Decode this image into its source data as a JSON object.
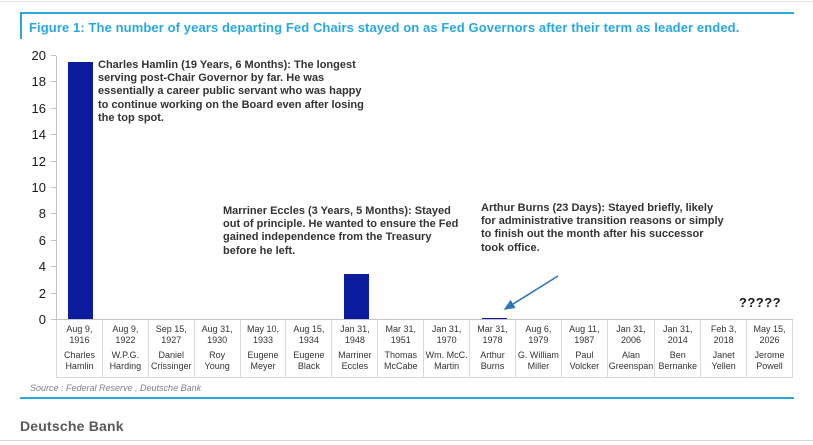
{
  "figure": {
    "source_note": "Source : Federal Reserve , Deutsche Bank",
    "footer_brand": "Deutsche Bank"
  },
  "colors": {
    "title_accent_blue": "#29a8e0",
    "bar_navy": "#0b1c9e",
    "arrow_blue": "#2e75b6"
  },
  "chart_data": {
    "type": "bar",
    "title": "Figure 1: The number of years departing Fed Chairs stayed on as Fed Governors after their term as leader ended.",
    "xlabel": "",
    "ylabel": "",
    "ylim": [
      0,
      20
    ],
    "ytick_interval": 2,
    "grid": "off",
    "bar_color": "#0b1c9e",
    "columns": [
      {
        "date": "Aug 9,\n1916",
        "name": "Charles\nHamlin",
        "value": 19.5
      },
      {
        "date": "Aug 9,\n1922",
        "name": "W.P.G.\nHarding",
        "value": 0
      },
      {
        "date": "Sep 15,\n1927",
        "name": "Daniel\nCrissinger",
        "value": 0
      },
      {
        "date": "Aug 31,\n1930",
        "name": "Roy Young",
        "value": 0
      },
      {
        "date": "May 10,\n1933",
        "name": "Eugene\nMeyer",
        "value": 0
      },
      {
        "date": "Aug 15,\n1934",
        "name": "Eugene\nBlack",
        "value": 0
      },
      {
        "date": "Jan 31,\n1948",
        "name": "Marriner\nEccles",
        "value": 3.42
      },
      {
        "date": "Mar 31,\n1951",
        "name": "Thomas\nMcCabe",
        "value": 0
      },
      {
        "date": "Jan 31,\n1970",
        "name": "Wm. McC.\nMartin",
        "value": 0
      },
      {
        "date": "Mar 31,\n1978",
        "name": "Arthur\nBurns",
        "value": 0.06
      },
      {
        "date": "Aug 6,\n1979",
        "name": "G. William\nMiller",
        "value": 0
      },
      {
        "date": "Aug 11,\n1987",
        "name": "Paul\nVolcker",
        "value": 0
      },
      {
        "date": "Jan 31,\n2006",
        "name": "Alan\nGreenspan",
        "value": 0
      },
      {
        "date": "Jan 31,\n2014",
        "name": "Ben\nBernanke",
        "value": 0
      },
      {
        "date": "Feb 3, 2018",
        "name": "Janet\nYellen",
        "value": 0
      },
      {
        "date": "May 15,\n2026",
        "name": "Jerome\nPowell",
        "value": null,
        "label": "?????"
      }
    ],
    "annotations": [
      {
        "text": "Charles Hamlin (19 Years, 6 Months): The longest serving post-Chair Governor by far. He was essentially a career public servant who was happy to continue working on the Board even after losing the top spot."
      },
      {
        "text": "Marriner Eccles (3 Years, 5 Months): Stayed out of principle. He wanted to ensure the Fed gained independence from the Treasury before he left."
      },
      {
        "text": "Arthur Burns (23 Days): Stayed briefly, likely for administrative transition reasons or simply to finish out the month after his successor took office."
      }
    ]
  }
}
